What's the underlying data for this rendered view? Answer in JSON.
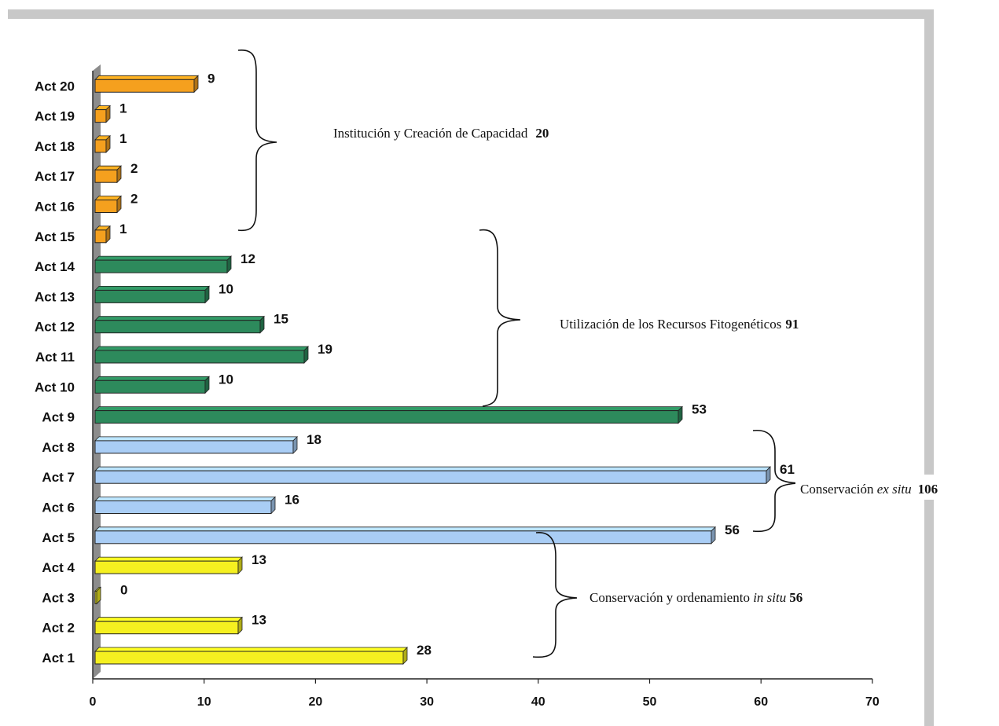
{
  "chart_data": {
    "type": "bar",
    "orientation": "horizontal",
    "categories": [
      "Act 1",
      "Act 2",
      "Act 3",
      "Act 4",
      "Act 5",
      "Act 6",
      "Act 7",
      "Act 8",
      "Act 9",
      "Act 10",
      "Act 11",
      "Act 12",
      "Act 13",
      "Act 14",
      "Act 15",
      "Act 16",
      "Act 17",
      "Act 18",
      "Act 19",
      "Act 20"
    ],
    "values": [
      28,
      13,
      0,
      13,
      56,
      16,
      61,
      18,
      53,
      10,
      19,
      15,
      10,
      12,
      1,
      2,
      2,
      1,
      1,
      9
    ],
    "data_labels": [
      "28",
      "13",
      "0",
      "13",
      "56",
      "16",
      "61",
      "18",
      "53",
      "10",
      "19",
      "15",
      "10",
      "12",
      "1",
      "2",
      "2",
      "1",
      "1",
      "9"
    ],
    "xlim": [
      0,
      70
    ],
    "xticks": [
      "0",
      "10",
      "20",
      "30",
      "40",
      "50",
      "60",
      "70"
    ],
    "grid": false,
    "colors": {
      "in_situ": "#f5f020",
      "ex_situ": "#a9cdf5",
      "utilizacion": "#2d8a5c",
      "institucion": "#f5a01e"
    },
    "bar_groups": [
      "in_situ",
      "in_situ",
      "in_situ",
      "in_situ",
      "ex_situ",
      "ex_situ",
      "ex_situ",
      "ex_situ",
      "utilizacion",
      "utilizacion",
      "utilizacion",
      "utilizacion",
      "utilizacion",
      "utilizacion",
      "institucion",
      "institucion",
      "institucion",
      "institucion",
      "institucion",
      "institucion"
    ],
    "annotations": {
      "institucion": {
        "text": "Institución y Creación de Capacidad",
        "total": "20"
      },
      "utilizacion": {
        "text": "Utilización de los Recursos Fitogenéticos",
        "total": "91"
      },
      "ex_situ": {
        "text": "Conservación ",
        "italic": "ex situ",
        "total": "106"
      },
      "in_situ": {
        "text": "Conservación y ordenamiento ",
        "italic": "in situ",
        "total": "56"
      }
    }
  }
}
